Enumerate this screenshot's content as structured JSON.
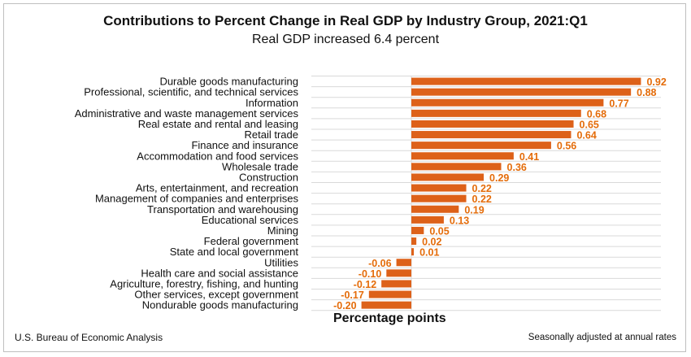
{
  "chart_data": {
    "type": "bar",
    "orientation": "horizontal",
    "title": "Contributions to Percent Change in Real GDP by Industry Group, 2021:Q1",
    "subtitle": "Real GDP increased 6.4 percent",
    "xlabel": "Percentage points",
    "categories": [
      "Durable goods manufacturing",
      "Professional, scientific, and technical services",
      "Information",
      "Administrative and waste management services",
      "Real estate and rental and leasing",
      "Retail trade",
      "Finance and insurance",
      "Accommodation and food services",
      "Wholesale trade",
      "Construction",
      "Arts, entertainment, and recreation",
      "Management of companies and enterprises",
      "Transportation and warehousing",
      "Educational services",
      "Mining",
      "Federal government",
      "State and local government",
      "Utilities",
      "Health care and social assistance",
      "Agriculture, forestry, fishing, and hunting",
      "Other services, except government",
      "Nondurable goods manufacturing"
    ],
    "values": [
      0.92,
      0.88,
      0.77,
      0.68,
      0.65,
      0.64,
      0.56,
      0.41,
      0.36,
      0.29,
      0.22,
      0.22,
      0.19,
      0.13,
      0.05,
      0.02,
      0.01,
      -0.06,
      -0.1,
      -0.12,
      -0.17,
      -0.2
    ],
    "data_labels": [
      "0.92",
      "0.88",
      "0.77",
      "0.68",
      "0.65",
      "0.64",
      "0.56",
      "0.41",
      "0.36",
      "0.29",
      "0.22",
      "0.22",
      "0.19",
      "0.13",
      "0.05",
      "0.02",
      "0.01",
      "-0.06",
      "-0.10",
      "-0.12",
      "-0.17",
      "-0.20"
    ],
    "bar_color": "#dd6119",
    "label_color": "#e46c0a",
    "grid": "horizontal",
    "legend": "none"
  },
  "footer": {
    "source": "U.S. Bureau of Economic Analysis",
    "note": "Seasonally adjusted at annual rates"
  }
}
